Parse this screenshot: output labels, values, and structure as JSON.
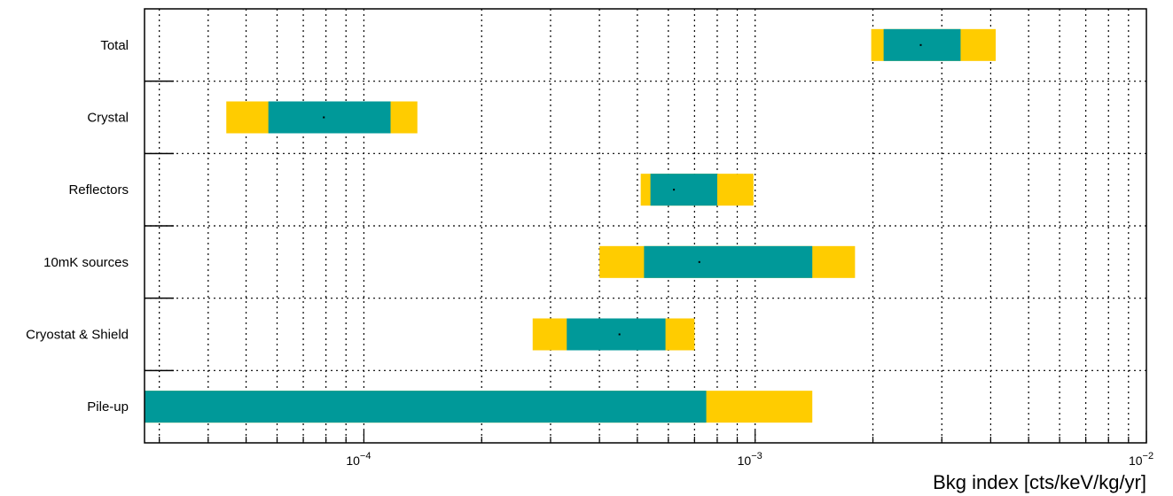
{
  "chart_data": {
    "type": "bar",
    "orientation": "horizontal",
    "xscale": "log",
    "xlim": [
      2.75e-05,
      0.01
    ],
    "xlabel": "Bkg index [cts/keV/kg/yr]",
    "x_ticks": [
      {
        "value": 0.0001,
        "base": "10",
        "exp": "−4"
      },
      {
        "value": 0.001,
        "base": "10",
        "exp": "−3"
      },
      {
        "value": 0.01,
        "base": "10",
        "exp": "−2"
      }
    ],
    "grid": true,
    "colors": {
      "inner_band": "#009999",
      "outer_band": "#ffcc00",
      "marker": "#000000"
    },
    "categories": [
      "Total",
      "Crystal",
      "Reflectors",
      "10mK sources",
      "Cryostat & Shield",
      "Pile-up"
    ],
    "series": [
      {
        "values": [
          0.00265,
          7.9e-05,
          0.00062,
          0.00072,
          0.00045,
          null
        ]
      },
      {
        "values": [
          [
            0.00213,
            0.00335
          ],
          [
            5.7e-05,
            0.000117
          ],
          [
            0.00054,
            0.0008
          ],
          [
            0.00052,
            0.0014
          ],
          [
            0.00033,
            0.00059
          ],
          [
            2.75e-05,
            0.00075
          ]
        ]
      },
      {
        "values": [
          [
            0.00198,
            0.00412
          ],
          [
            4.45e-05,
            0.000137
          ],
          [
            0.00051,
            0.00099
          ],
          [
            0.0004,
            0.0018
          ],
          [
            0.00027,
            0.0007
          ],
          [
            2.75e-05,
            0.0014
          ]
        ]
      }
    ]
  }
}
